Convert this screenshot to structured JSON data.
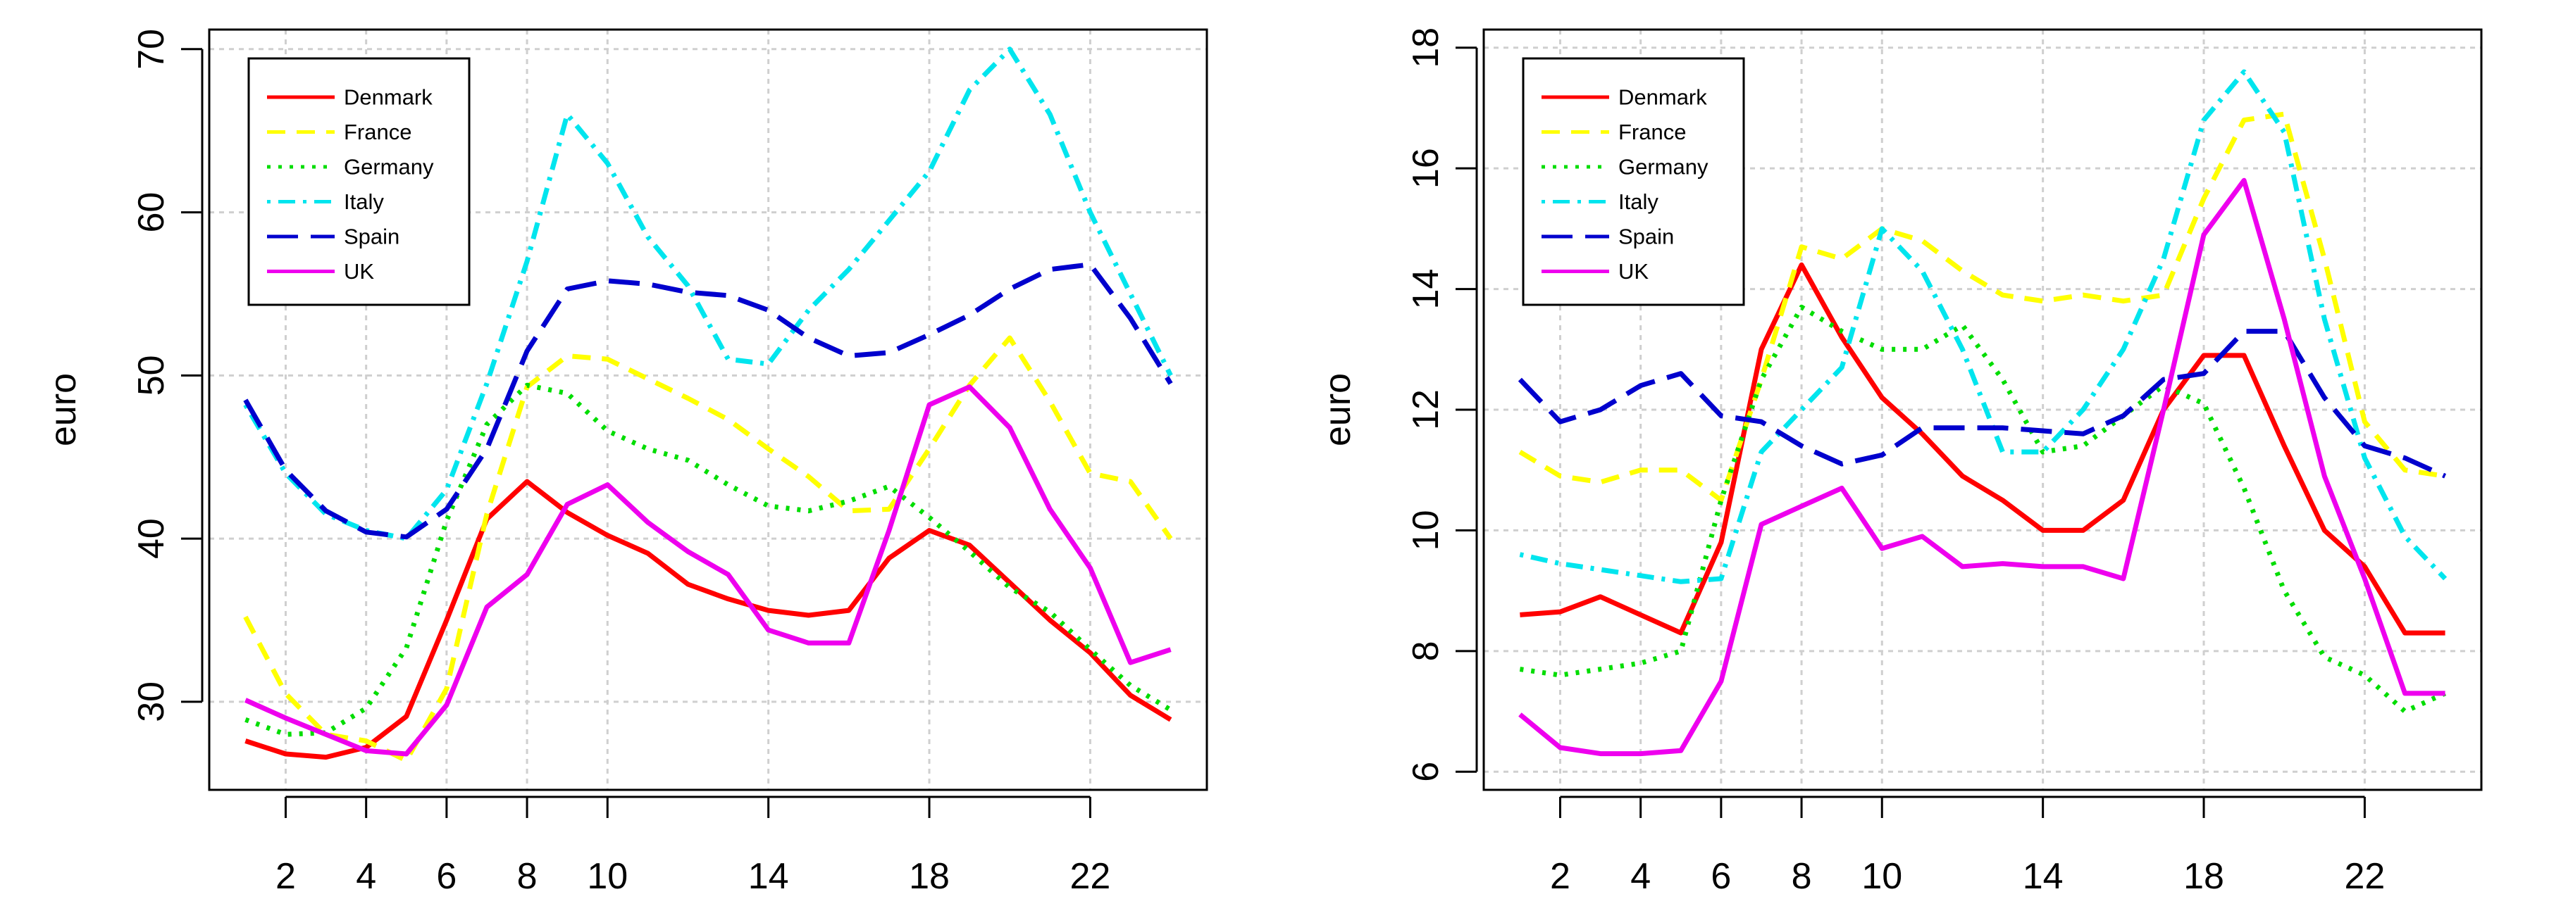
{
  "chart_data": [
    {
      "type": "line",
      "title": "",
      "xlabel": "",
      "ylabel": "euro",
      "xlim": [
        0.1,
        24.9
      ],
      "ylim": [
        24.6,
        71.2
      ],
      "grid": true,
      "legend_position": "top-left",
      "x_ticks": [
        2,
        4,
        6,
        8,
        10,
        14,
        18,
        22
      ],
      "y_ticks": [
        30,
        40,
        50,
        60,
        70
      ],
      "x": [
        1,
        2,
        3,
        4,
        5,
        6,
        7,
        8,
        9,
        10,
        11,
        12,
        13,
        14,
        15,
        16,
        17,
        18,
        19,
        20,
        21,
        22,
        23,
        24
      ],
      "series": [
        {
          "name": "Denmark",
          "color": "#ff0000",
          "dash": "solid",
          "values": [
            27.6,
            26.8,
            26.6,
            27.2,
            29.1,
            35.0,
            41.2,
            43.5,
            41.6,
            40.2,
            39.1,
            37.2,
            36.3,
            35.6,
            35.3,
            35.6,
            38.8,
            40.5,
            39.6,
            37.3,
            35.0,
            33.0,
            30.4,
            28.9
          ]
        },
        {
          "name": "France",
          "color": "#ffff00",
          "dash": "dashed",
          "values": [
            35.2,
            30.5,
            28.0,
            27.6,
            26.4,
            30.8,
            41.5,
            49.3,
            51.2,
            51.0,
            49.8,
            48.6,
            47.3,
            45.5,
            43.8,
            41.7,
            41.8,
            45.5,
            49.4,
            52.3,
            48.4,
            44.0,
            43.5,
            40.0
          ]
        },
        {
          "name": "Germany",
          "color": "#00dd00",
          "dash": "dotted",
          "values": [
            28.9,
            28.0,
            28.1,
            29.6,
            33.3,
            41.1,
            47.0,
            49.4,
            48.9,
            46.6,
            45.5,
            44.8,
            43.3,
            42.0,
            41.7,
            42.3,
            43.2,
            41.3,
            39.2,
            37.0,
            35.5,
            33.2,
            31.0,
            29.5
          ]
        },
        {
          "name": "Italy",
          "color": "#00e5ee",
          "dash": "dotdash",
          "values": [
            48.2,
            44.0,
            41.5,
            40.5,
            40.0,
            43.0,
            49.5,
            57.0,
            66.0,
            63.0,
            58.5,
            55.5,
            51.0,
            50.7,
            54.0,
            56.5,
            59.5,
            62.5,
            67.5,
            70.0,
            66.0,
            60.0,
            55.0,
            50.0
          ]
        },
        {
          "name": "Spain",
          "color": "#0000cd",
          "dash": "longdash",
          "values": [
            48.5,
            44.2,
            41.7,
            40.4,
            40.1,
            41.8,
            45.5,
            51.5,
            55.3,
            55.8,
            55.6,
            55.1,
            54.9,
            54.0,
            52.3,
            51.2,
            51.4,
            52.5,
            53.7,
            55.3,
            56.5,
            56.8,
            53.5,
            49.5
          ]
        },
        {
          "name": "UK",
          "color": "#ee00ee",
          "dash": "solid",
          "values": [
            30.1,
            29.0,
            28.0,
            27.0,
            26.8,
            29.8,
            35.8,
            37.8,
            42.1,
            43.3,
            41.0,
            39.2,
            37.8,
            34.4,
            33.6,
            33.6,
            40.5,
            48.2,
            49.3,
            46.8,
            41.8,
            38.2,
            32.4,
            33.2
          ]
        }
      ]
    },
    {
      "type": "line",
      "title": "",
      "xlabel": "",
      "ylabel": "euro",
      "xlim": [
        0.1,
        24.9
      ],
      "ylim": [
        5.7,
        18.3
      ],
      "grid": true,
      "legend_position": "top-left",
      "x_ticks": [
        2,
        4,
        6,
        8,
        10,
        14,
        18,
        22
      ],
      "y_ticks": [
        6,
        8,
        10,
        12,
        14,
        16,
        18
      ],
      "x": [
        1,
        2,
        3,
        4,
        5,
        6,
        7,
        8,
        9,
        10,
        11,
        12,
        13,
        14,
        15,
        16,
        17,
        18,
        19,
        20,
        21,
        22,
        23,
        24
      ],
      "series": [
        {
          "name": "Denmark",
          "color": "#ff0000",
          "dash": "solid",
          "values": [
            8.6,
            8.65,
            8.9,
            8.6,
            8.3,
            9.8,
            13.0,
            14.4,
            13.2,
            12.2,
            11.6,
            10.9,
            10.5,
            10.0,
            10.0,
            10.5,
            12.0,
            12.9,
            12.9,
            11.4,
            10.0,
            9.4,
            8.3,
            8.3
          ]
        },
        {
          "name": "France",
          "color": "#ffff00",
          "dash": "dashed",
          "values": [
            11.3,
            10.9,
            10.8,
            11.0,
            11.0,
            10.5,
            12.5,
            14.7,
            14.5,
            15.0,
            14.8,
            14.3,
            13.9,
            13.8,
            13.9,
            13.8,
            13.9,
            15.5,
            16.8,
            16.9,
            14.5,
            11.8,
            11.0,
            10.9
          ]
        },
        {
          "name": "Germany",
          "color": "#00dd00",
          "dash": "dotted",
          "values": [
            7.7,
            7.6,
            7.7,
            7.8,
            8.0,
            10.5,
            12.5,
            13.7,
            13.3,
            13.0,
            13.0,
            13.4,
            12.5,
            11.3,
            11.4,
            11.9,
            12.4,
            12.1,
            10.7,
            9.0,
            7.9,
            7.6,
            7.0,
            7.3
          ]
        },
        {
          "name": "Italy",
          "color": "#00e5ee",
          "dash": "dotdash",
          "values": [
            9.6,
            9.45,
            9.35,
            9.25,
            9.15,
            9.2,
            11.3,
            12.0,
            12.7,
            15.0,
            14.3,
            13.0,
            11.3,
            11.3,
            12.0,
            13.0,
            14.5,
            16.8,
            17.6,
            16.6,
            13.5,
            11.2,
            9.9,
            9.2
          ]
        },
        {
          "name": "Spain",
          "color": "#0000cd",
          "dash": "longdash",
          "values": [
            12.5,
            11.8,
            12.0,
            12.4,
            12.6,
            11.9,
            11.8,
            11.4,
            11.1,
            11.25,
            11.7,
            11.7,
            11.7,
            11.65,
            11.6,
            11.9,
            12.5,
            12.6,
            13.3,
            13.3,
            12.2,
            11.4,
            11.2,
            10.9
          ]
        },
        {
          "name": "UK",
          "color": "#ee00ee",
          "dash": "solid",
          "values": [
            6.95,
            6.4,
            6.3,
            6.3,
            6.35,
            7.5,
            10.1,
            10.4,
            10.7,
            9.7,
            9.9,
            9.4,
            9.45,
            9.4,
            9.4,
            9.2,
            12.0,
            14.9,
            15.8,
            13.5,
            10.9,
            9.2,
            7.3,
            7.3
          ]
        }
      ]
    }
  ]
}
